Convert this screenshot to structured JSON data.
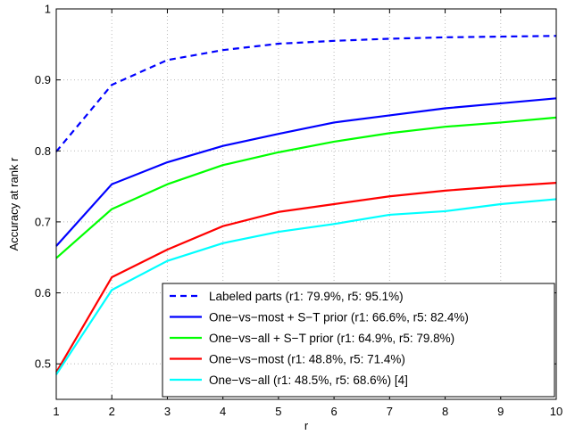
{
  "chart_data": {
    "type": "line",
    "xlabel": "r",
    "ylabel": "Accuracy at rank r",
    "xlim": [
      1,
      10
    ],
    "ylim": [
      0.45,
      1.0
    ],
    "x_ticks": [
      1,
      2,
      3,
      4,
      5,
      6,
      7,
      8,
      9,
      10
    ],
    "y_ticks": [
      0.5,
      0.6,
      0.7,
      0.8,
      0.9,
      1.0
    ],
    "y_tick_labels": [
      "0.5",
      "0.6",
      "0.7",
      "0.8",
      "0.9",
      "1"
    ],
    "grid": true,
    "legend_position": "bottom-right",
    "x": [
      1,
      2,
      3,
      4,
      5,
      6,
      7,
      8,
      9,
      10
    ],
    "series": [
      {
        "name": "Labeled parts (r1: 79.9%, r5: 95.1%)",
        "color": "#0000ff",
        "dashed": true,
        "values": [
          0.799,
          0.893,
          0.928,
          0.942,
          0.951,
          0.955,
          0.958,
          0.96,
          0.961,
          0.962
        ]
      },
      {
        "name": "One−vs−most + S−T prior (r1: 66.6%, r5: 82.4%)",
        "color": "#0000ff",
        "dashed": false,
        "values": [
          0.666,
          0.753,
          0.784,
          0.807,
          0.824,
          0.84,
          0.85,
          0.86,
          0.867,
          0.874
        ]
      },
      {
        "name": "One−vs−all + S−T prior (r1: 64.9%, r5: 79.8%)",
        "color": "#00ff00",
        "dashed": false,
        "values": [
          0.649,
          0.718,
          0.753,
          0.78,
          0.798,
          0.813,
          0.825,
          0.834,
          0.84,
          0.847
        ]
      },
      {
        "name": "One−vs−most (r1: 48.8%, r5: 71.4%)",
        "color": "#ff0000",
        "dashed": false,
        "values": [
          0.488,
          0.622,
          0.661,
          0.694,
          0.714,
          0.725,
          0.736,
          0.744,
          0.75,
          0.755
        ]
      },
      {
        "name": "One−vs−all (r1: 48.5%, r5: 68.6%) [4]",
        "color": "#00ffff",
        "dashed": false,
        "values": [
          0.485,
          0.604,
          0.645,
          0.67,
          0.686,
          0.697,
          0.71,
          0.715,
          0.725,
          0.732
        ]
      }
    ]
  }
}
